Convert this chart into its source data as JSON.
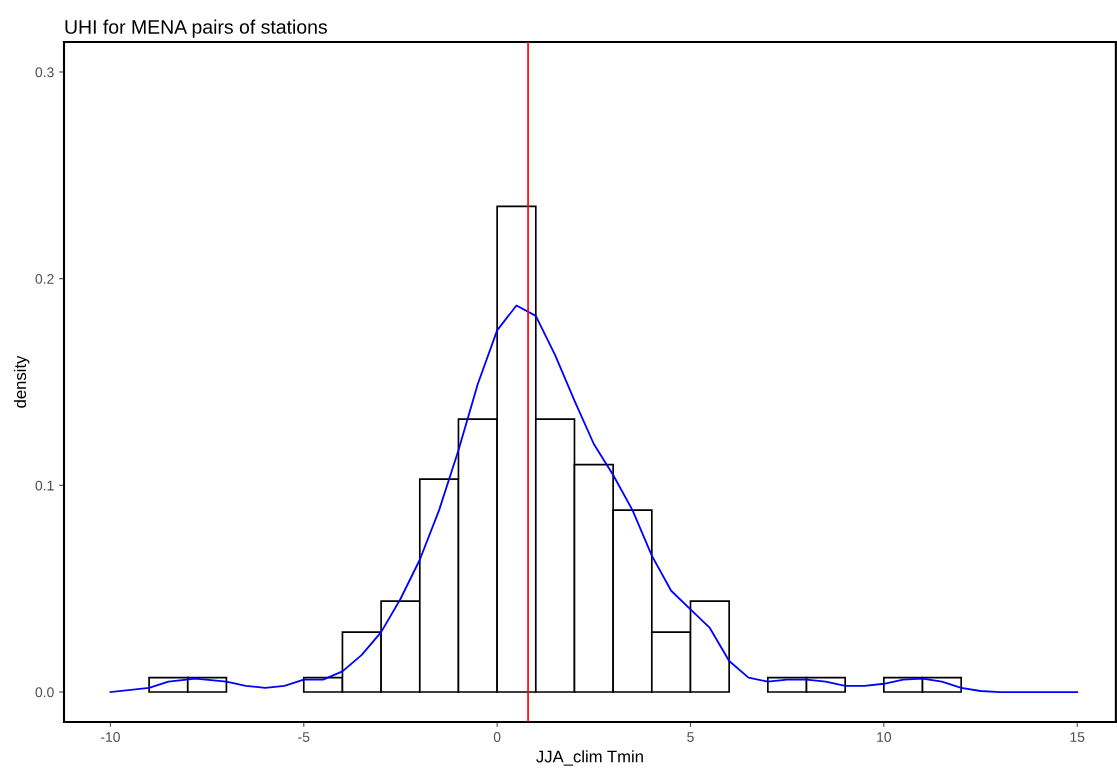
{
  "chart_data": {
    "type": "histogram",
    "title": "UHI for MENA pairs of stations",
    "xlabel": "JJA_clim Tmin",
    "ylabel": "density",
    "bins": [
      -9,
      -8,
      -7,
      -6,
      -5,
      -4,
      -3,
      -2,
      -1,
      0,
      1,
      2,
      3,
      4,
      5,
      6,
      7,
      8,
      9,
      10,
      11,
      12
    ],
    "values": [
      0.007,
      0.007,
      0,
      0,
      0.007,
      0.029,
      0.044,
      0.103,
      0.132,
      0.235,
      0.132,
      0.11,
      0.088,
      0.029,
      0.044,
      0,
      0.007,
      0.007,
      0,
      0.007,
      0.007
    ],
    "color": "#ffffff",
    "series": [
      {
        "type": "line",
        "color": "#0000ff",
        "x": [
          -10,
          -9,
          -8.5,
          -7.8,
          -7,
          -6.5,
          -6,
          -5.5,
          -5,
          -4.5,
          -4,
          -3.5,
          -3,
          -2.5,
          -2,
          -1.5,
          -1,
          -0.5,
          0,
          0.5,
          1,
          1.5,
          2,
          2.5,
          3,
          3.5,
          4,
          4.5,
          5,
          5.5,
          6,
          6.5,
          7,
          7.5,
          8,
          8.5,
          9,
          9.5,
          10,
          10.5,
          11,
          11.5,
          12,
          12.5,
          13,
          14,
          15
        ],
        "values": [
          0,
          0.002,
          0.005,
          0.0065,
          0.005,
          0.003,
          0.002,
          0.003,
          0.006,
          0.006,
          0.01,
          0.018,
          0.029,
          0.045,
          0.064,
          0.088,
          0.117,
          0.149,
          0.175,
          0.187,
          0.182,
          0.163,
          0.141,
          0.12,
          0.105,
          0.088,
          0.066,
          0.049,
          0.04,
          0.031,
          0.015,
          0.007,
          0.005,
          0.006,
          0.006,
          0.005,
          0.003,
          0.003,
          0.004,
          0.006,
          0.0065,
          0.005,
          0.002,
          0.0005,
          0,
          0,
          0
        ]
      }
    ],
    "ref_lines": [
      {
        "axis": "x",
        "value": 0.8,
        "color": "#ff0000"
      }
    ],
    "xlim": [
      -11.2,
      16.0
    ],
    "ylim": [
      -0.0145,
      0.3145
    ],
    "xticks": [
      {
        "value": -10,
        "label": "-10"
      },
      {
        "value": -5,
        "label": "-5"
      },
      0,
      5,
      10,
      15
    ],
    "yticks": [
      {
        "value": 0,
        "label": "0.0"
      },
      0.1,
      0.2,
      0.3
    ],
    "grid": false,
    "legend": false
  }
}
